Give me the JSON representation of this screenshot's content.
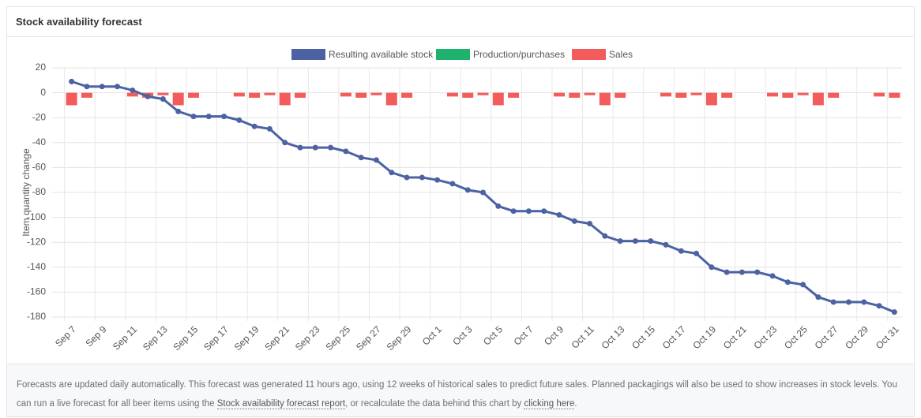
{
  "card_title": "Stock availability forecast",
  "chart_data": {
    "type": "line",
    "y_label": "Item quantity change",
    "categories": [
      "Sep 7",
      null,
      "Sep 9",
      null,
      "Sep 11",
      null,
      "Sep 13",
      null,
      "Sep 15",
      null,
      "Sep 17",
      null,
      "Sep 19",
      null,
      "Sep 21",
      null,
      "Sep 23",
      null,
      "Sep 25",
      null,
      "Sep 27",
      null,
      "Sep 29",
      null,
      "Oct 1",
      null,
      "Oct 3",
      null,
      "Oct 5",
      null,
      "Oct 7",
      null,
      "Oct 9",
      null,
      "Oct 11",
      null,
      "Oct 13",
      null,
      "Oct 15",
      null,
      "Oct 17",
      null,
      "Oct 19",
      null,
      "Oct 21",
      null,
      "Oct 23",
      null,
      "Oct 25",
      null,
      "Oct 27",
      null,
      "Oct 29",
      null,
      "Oct 31"
    ],
    "series": [
      {
        "name": "Resulting available stock",
        "type": "line",
        "color": "#4c62a2",
        "values": [
          9,
          5,
          5,
          5,
          2,
          -3,
          -5,
          -15,
          -19,
          -19,
          -19,
          -22,
          -27,
          -29,
          -40,
          -44,
          -44,
          -44,
          -47,
          -52,
          -54,
          -64,
          -68,
          -68,
          -70,
          -73,
          -78,
          -80,
          -91,
          -95,
          -95,
          -95,
          -98,
          -103,
          -105,
          -115,
          -119,
          -119,
          -119,
          -122,
          -127,
          -129,
          -140,
          -144,
          -144,
          -144,
          -147,
          -152,
          -154,
          -164,
          -168,
          -168,
          -168,
          -171,
          -176
        ]
      },
      {
        "name": "Production/purchases",
        "type": "bar",
        "color": "#1db36f",
        "values": [
          0,
          0,
          0,
          0,
          0,
          0,
          0,
          0,
          0,
          0,
          0,
          0,
          0,
          0,
          0,
          0,
          0,
          0,
          0,
          0,
          0,
          0,
          0,
          0,
          0,
          0,
          0,
          0,
          0,
          0,
          0,
          0,
          0,
          0,
          0,
          0,
          0,
          0,
          0,
          0,
          0,
          0,
          0,
          0,
          0,
          0,
          0,
          0,
          0,
          0,
          0,
          0,
          0,
          0,
          0
        ]
      },
      {
        "name": "Sales",
        "type": "bar",
        "color": "#f45b5b",
        "values": [
          -10,
          -4,
          0,
          0,
          -3,
          -4,
          -2,
          -10,
          -4,
          0,
          0,
          -3,
          -4,
          -2,
          -10,
          -4,
          0,
          0,
          -3,
          -4,
          -2,
          -10,
          -4,
          0,
          0,
          -3,
          -4,
          -2,
          -10,
          -4,
          0,
          0,
          -3,
          -4,
          -2,
          -10,
          -4,
          0,
          0,
          -3,
          -4,
          -2,
          -10,
          -4,
          0,
          0,
          -3,
          -4,
          -2,
          -10,
          -4,
          0,
          0,
          -3,
          -4
        ]
      }
    ],
    "ylim": [
      -180,
      20
    ],
    "yticks": [
      20,
      0,
      -20,
      -40,
      -60,
      -80,
      -100,
      -120,
      -140,
      -160,
      -180
    ],
    "grid": true,
    "legend": "top"
  },
  "footer": {
    "text_1": "Forecasts are updated daily automatically. This forecast was generated 11 hours ago, using 12 weeks of historical sales to predict future sales. Planned packagings will also be used to show increases in stock levels. You can run a live forecast for all beer items using the ",
    "link_1": "Stock availability forecast report",
    "text_2": ", or recalculate the data behind this chart by ",
    "link_2": "clicking here",
    "text_3": "."
  }
}
